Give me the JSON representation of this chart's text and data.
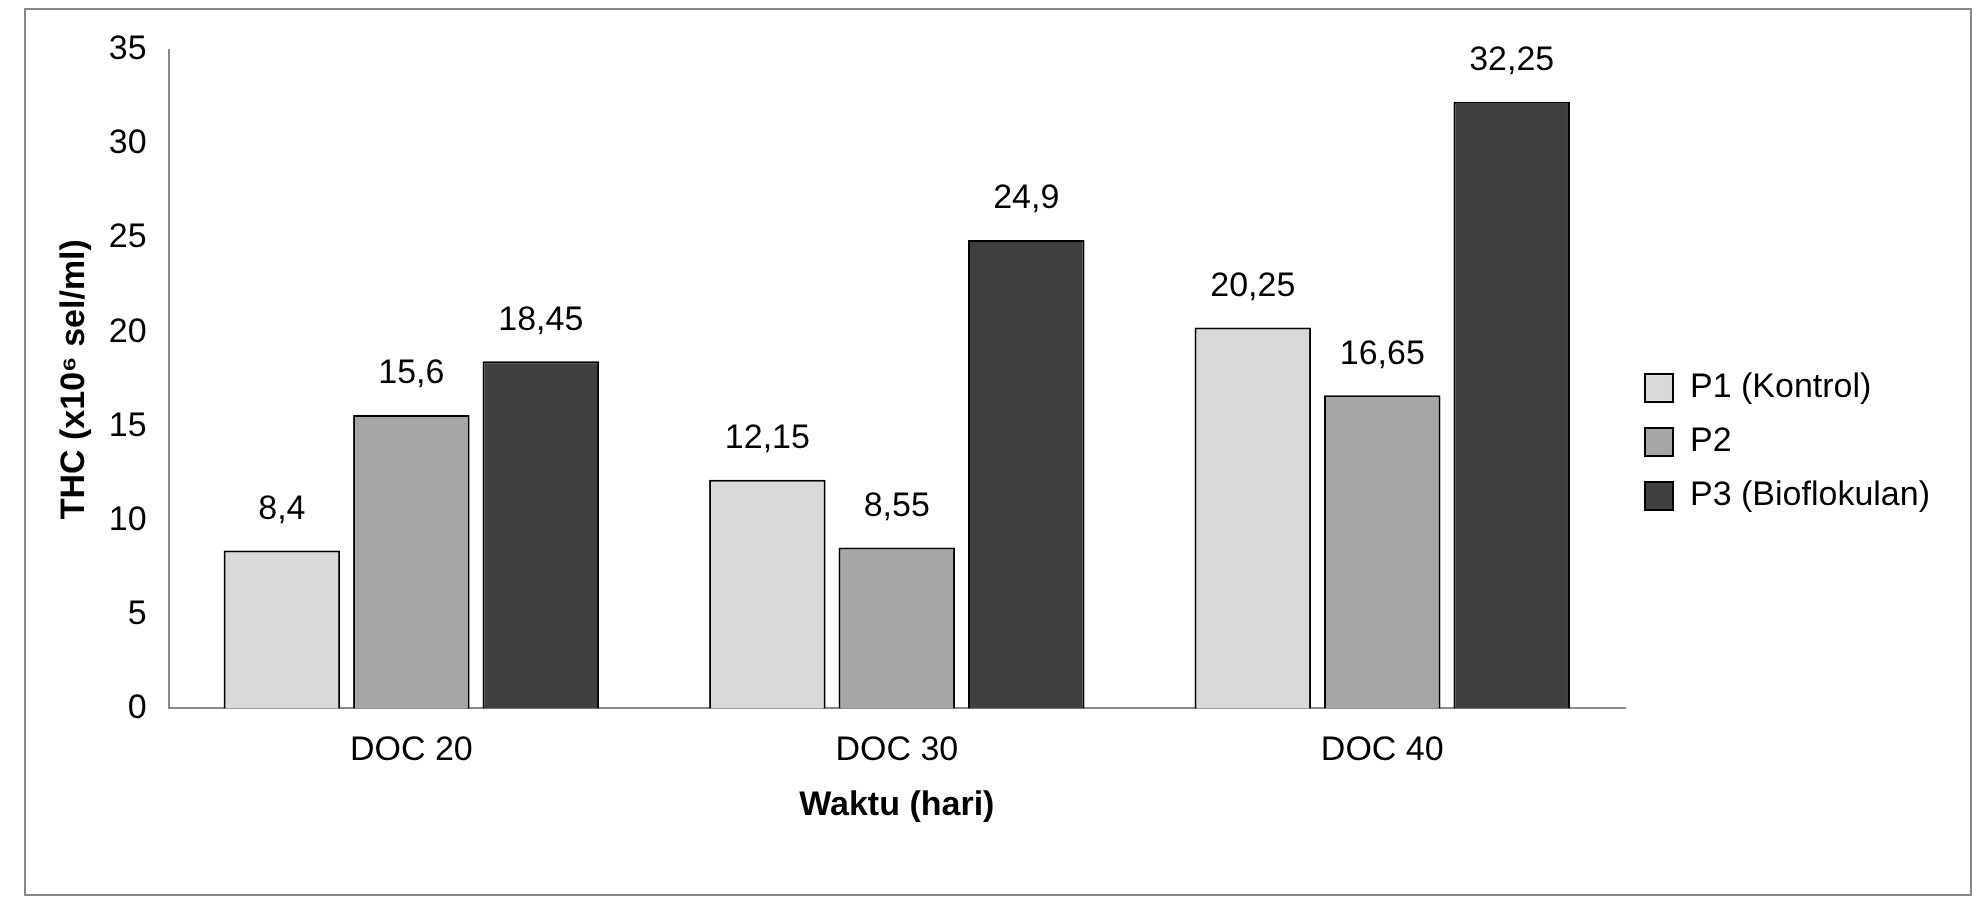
{
  "chart_data": {
    "type": "bar",
    "xlabel": "Waktu (hari)",
    "ylabel": "THC (x10⁶ sel/ml)",
    "categories": [
      "DOC 20",
      "DOC 30",
      "DOC 40"
    ],
    "series": [
      {
        "name": "P1 (Kontrol)",
        "color": "#d9d9d9",
        "values": [
          8.4,
          12.15,
          20.25
        ],
        "value_labels": [
          "8,4",
          "12,15",
          "20,25"
        ]
      },
      {
        "name": "P2",
        "color": "#a6a6a6",
        "values": [
          15.6,
          8.55,
          16.65
        ],
        "value_labels": [
          "15,6",
          "8,55",
          "16,65"
        ]
      },
      {
        "name": "P3 (Bioflokulan)",
        "color": "#404040",
        "values": [
          18.45,
          24.9,
          32.25
        ],
        "value_labels": [
          "18,45",
          "24,9",
          "32,25"
        ]
      }
    ],
    "ylim": [
      0,
      35
    ],
    "yticks": [
      0,
      5,
      10,
      15,
      20,
      25,
      30,
      35
    ],
    "legend": "right"
  }
}
